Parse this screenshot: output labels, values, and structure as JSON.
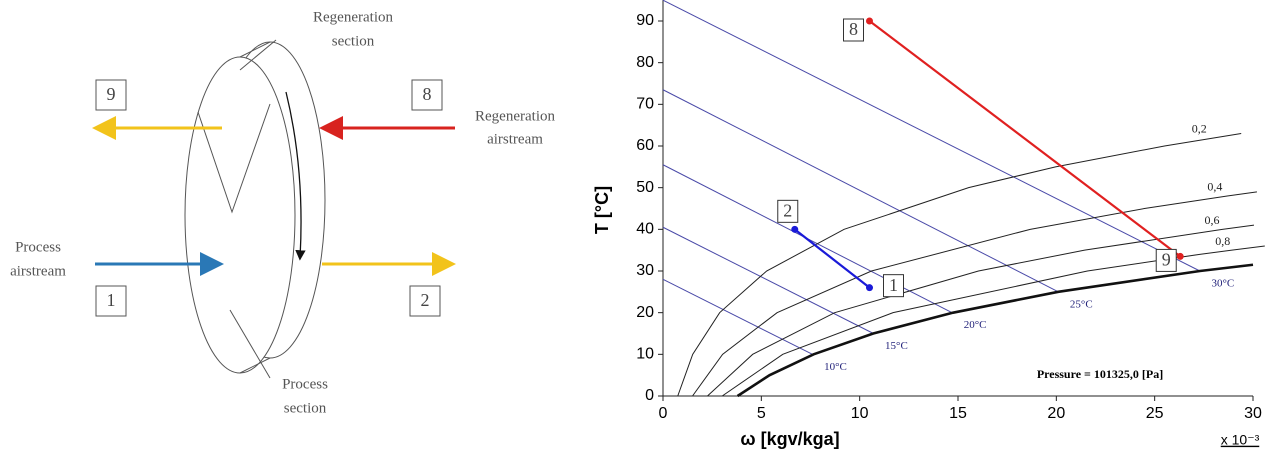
{
  "diagram": {
    "regeneration_section": [
      "Regeneration",
      "section"
    ],
    "regeneration_airstream": [
      "Regeneration",
      "airstream"
    ],
    "process_airstream": [
      "Process",
      "airstream"
    ],
    "process_section": [
      "Process",
      "section"
    ],
    "boxes": [
      "9",
      "8",
      "1",
      "2"
    ]
  },
  "chart_data": {
    "type": "line",
    "x_label": "ω [kgv/kga]",
    "y_label": "T [°C]",
    "x_multiplier": "x 10⁻³",
    "annotation": "Pressure = 101325,0 [Pa]",
    "xlim": [
      0,
      30
    ],
    "ylim": [
      0,
      95
    ],
    "xticks": [
      0,
      5,
      10,
      15,
      20,
      25,
      30
    ],
    "yticks": [
      0,
      10,
      20,
      30,
      40,
      50,
      60,
      70,
      80,
      90
    ],
    "series": [
      {
        "color": "#1a1ad8",
        "x": [
          6.7,
          10.5
        ],
        "values": [
          40,
          26
        ],
        "point_labels": [
          "2",
          "1"
        ]
      },
      {
        "color": "#e02020",
        "x": [
          10.5,
          26.3
        ],
        "values": [
          90,
          33.5
        ],
        "point_labels": [
          "8",
          "9"
        ]
      }
    ],
    "saturation_curve": {
      "x": [
        3.79,
        5.42,
        7.66,
        10.69,
        14.75,
        20.1,
        27.3,
        30
      ],
      "y": [
        0,
        5,
        10,
        15,
        20,
        25,
        30,
        31.5
      ]
    },
    "rh_curves": [
      {
        "label": "0,2",
        "x": [
          0.75,
          1.51,
          2.88,
          5.27,
          9.21,
          15.54,
          19.96,
          25.5,
          29.4
        ],
        "y": [
          0,
          10,
          20,
          30,
          40,
          50,
          55,
          60,
          63
        ]
      },
      {
        "label": "0,4",
        "x": [
          1.5,
          3.03,
          5.8,
          10.6,
          18.67,
          24.48,
          28.69,
          30.2
        ],
        "y": [
          0,
          10,
          20,
          30,
          40,
          45,
          48,
          49
        ]
      },
      {
        "label": "0,6",
        "x": [
          2.26,
          4.56,
          8.73,
          16.04,
          21.44,
          28.44,
          30.05
        ],
        "y": [
          0,
          10,
          20,
          30,
          35,
          40,
          41
        ]
      },
      {
        "label": "0,8",
        "x": [
          3.01,
          6.09,
          11.7,
          21.58,
          27.29,
          28.93,
          30.6
        ],
        "y": [
          0,
          10,
          20,
          30,
          34,
          35,
          36
        ]
      }
    ],
    "wet_bulb_lines": [
      {
        "label": "10°C",
        "x": [
          0,
          7.6
        ],
        "y": [
          28,
          10
        ]
      },
      {
        "label": "15°C",
        "x": [
          0,
          10.7
        ],
        "y": [
          40.5,
          15
        ]
      },
      {
        "label": "20°C",
        "x": [
          0,
          14.7
        ],
        "y": [
          55.5,
          20
        ]
      },
      {
        "label": "25°C",
        "x": [
          0,
          20.1
        ],
        "y": [
          73.5,
          25
        ]
      },
      {
        "label": "30°C",
        "x": [
          0,
          27.3
        ],
        "y": [
          95,
          30
        ]
      }
    ]
  }
}
